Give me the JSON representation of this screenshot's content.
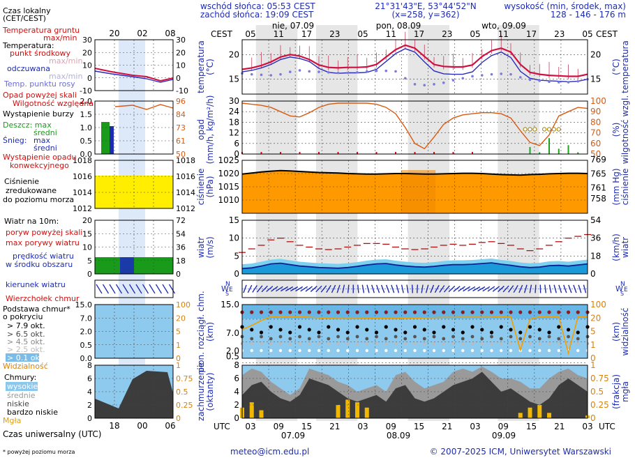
{
  "header": {
    "sunrise": "wschód słońca: 05:53 CEST",
    "sunset": "zachód słońca: 19:09 CEST",
    "coords": "21°31'43\"E, 53°44'52\"N",
    "grid": "(x=258, y=362)",
    "elev_label": "wysokość (min, środek, max)",
    "elev_values": "128 - 146 - 176 m"
  },
  "footer": {
    "email": "meteo@icm.edu.pl",
    "copyright": "© 2007-2025 ICM, Uniwersytet Warszawski",
    "note": "* powyżej poziomu morza"
  },
  "time_axis": {
    "top_label": "CEST",
    "bottom_label": "UTC",
    "top_hours": [
      "05",
      "11",
      "17",
      "23",
      "05",
      "11",
      "17",
      "23",
      "05",
      "11",
      "17",
      "23",
      "05"
    ],
    "bottom_hours": [
      "03",
      "09",
      "15",
      "21",
      "03",
      "09",
      "15",
      "21",
      "03",
      "09",
      "15",
      "21",
      "03"
    ],
    "days_top": [
      "nie, 07.09",
      "pon, 08.09",
      "wto, 09.09"
    ],
    "days_bottom": [
      "07.09",
      "08.09",
      "09.09"
    ]
  },
  "legend": {
    "local_time": "Czas lokalny",
    "local_time2": "(CET/CEST)",
    "legend_hours": [
      "20",
      "02",
      "08"
    ],
    "legend_utc_hours": [
      "18",
      "00",
      "06"
    ],
    "ground_temp": "Temperatura gruntu",
    "maxmin": "max/min",
    "temperature": "Temperatura:",
    "mid_point": "punkt środkowy",
    "maxmin2": "max/min",
    "felt": "odczuwana",
    "maxmin3": "max/min",
    "dew": "Temp. punktu rosy",
    "precip_above": "Opad powyżej skali",
    "humidity": "Wilgotność względna",
    "storm": "Wystąpienie burzy",
    "rain": "Deszcz: max",
    "rain_mid": "średni",
    "snow": "Śnieg:",
    "snow_max": "max",
    "snow_mid": "średni",
    "conv1": "Wystąpienie opadu",
    "conv2": "konwekcyjnego",
    "press1": "Ciśnienie",
    "press2": "zredukowane",
    "press3": "do poziomu morza",
    "wind10": "Wiatr na 10m:",
    "gust_above": "poryw powyżej skali",
    "gust_max": "max porywy wiatru",
    "wind_speed1": "prędkość wiatru",
    "wind_speed2": "w środku obszaru",
    "wind_dir": "kierunek wiatru",
    "cloud_top": "Wierzchołek chmur",
    "cloud_base1": "Podstawa chmur*",
    "cloud_base2": "o pokryciu",
    "okt1": "> 7.9 okt.",
    "okt2": "> 6.5 okt.",
    "okt3": "> 4.5 okt.",
    "okt4": "> 2.5 okt.",
    "okt5": "> 0.1 okt.",
    "visibility": "Widzialność",
    "clouds": "Chmury:",
    "c_high": "wysokie",
    "c_mid": "średnie",
    "c_low": "niskie",
    "c_vlow": "bardzo niskie",
    "fog": "Mgła",
    "utc_time": "Czas uniwersalny (UTC)"
  },
  "panels": {
    "temp": {
      "left": "temperatura",
      "left2": "(°C)",
      "right": "temperatura",
      "right2": "(°C)"
    },
    "precip": {
      "left": "opad",
      "left2": "(mm/h, kg/m²/h)",
      "right": "wilgotność wzgl.",
      "right2": "(%)"
    },
    "pressure": {
      "left": "ciśnienie",
      "left2": "(hPa)",
      "right": "ciśnienie",
      "right2": "(mm Hg)"
    },
    "wind": {
      "left": "wiatr",
      "left2": "(m/s)",
      "right": "wiatr",
      "right2": "(km/h)"
    },
    "cloudbase": {
      "left": "pion. rozciągł. chm.",
      "left2": "(km)",
      "right": "widzialność",
      "right2": "(km)"
    },
    "clouds": {
      "left": "zachmurzenie",
      "left2": "(oktanty)",
      "right": "mgła",
      "right2": "(frakcja)"
    },
    "compass": {
      "N": "N",
      "W": "W",
      "E": "E",
      "S": "S"
    }
  },
  "colors": {
    "temp": "#d01040",
    "felt": "#2a2ab8",
    "dew": "#7a7ae0",
    "humidity": "#d85a10",
    "rain": "#1aa51a",
    "pressure_fill": "#ff9900",
    "pressure_line": "#000000",
    "wind_fill": "#1a9ad8",
    "wind_gust": "#b01010",
    "fog": "#f0b800"
  },
  "chart_data": [
    {
      "type": "line",
      "title": "temperatura",
      "ylabel": "°C",
      "ylim": [
        12,
        23
      ],
      "yticks": [
        15,
        20
      ],
      "series": [
        {
          "name": "punkt środkowy",
          "values": [
            17.0,
            17.3,
            17.8,
            18.5,
            19.5,
            20.0,
            19.7,
            19.0,
            17.9,
            17.4,
            17.3,
            17.4,
            17.4,
            17.5,
            18.0,
            19.5,
            21.0,
            21.9,
            21.3,
            19.6,
            18.0,
            17.6,
            17.5,
            17.5,
            17.9,
            19.6,
            20.8,
            21.3,
            20.5,
            18.0,
            16.4,
            16.0,
            15.8,
            15.7,
            15.6,
            15.6,
            16.0
          ]
        },
        {
          "name": "odczuwana",
          "values": [
            16.5,
            16.8,
            17.3,
            18.0,
            19.0,
            19.5,
            19.2,
            18.6,
            17.2,
            16.4,
            16.2,
            16.3,
            16.3,
            16.4,
            17.0,
            18.6,
            20.2,
            21.2,
            20.5,
            18.5,
            16.7,
            16.1,
            16.0,
            16.0,
            16.5,
            18.4,
            19.8,
            20.5,
            19.4,
            16.6,
            15.2,
            14.8,
            14.7,
            14.6,
            14.5,
            14.6,
            15.0
          ]
        },
        {
          "name": "Temp. punktu rosy",
          "values": [
            16.2,
            16.0,
            15.9,
            15.8,
            16.0,
            16.5,
            16.8,
            16.6,
            16.5,
            16.4,
            16.3,
            16.3,
            16.4,
            16.6,
            16.7,
            16.7,
            16.6,
            15.2,
            14.0,
            13.8,
            14.0,
            14.3,
            14.8,
            15.2,
            15.6,
            15.8,
            16.0,
            16.1,
            16.0,
            15.4,
            14.9,
            14.7,
            14.5,
            14.4,
            14.4,
            14.6,
            15.0
          ]
        }
      ]
    },
    {
      "type": "line",
      "title": "opad / wilgotność wzgl.",
      "ylim": [
        0,
        30
      ],
      "yticks": [
        0,
        6,
        12,
        18,
        24,
        30
      ],
      "y2lim": [
        50,
        100
      ],
      "y2ticks": [
        50,
        60,
        70,
        80,
        90,
        100
      ],
      "series": [
        {
          "name": "wilgotność względna",
          "axis": "right",
          "values": [
            98,
            97,
            96,
            94,
            90,
            86,
            85,
            89,
            94,
            97,
            98,
            98,
            98,
            98,
            97,
            94,
            88,
            75,
            60,
            55,
            66,
            78,
            84,
            87,
            88,
            89,
            89,
            88,
            84,
            72,
            61,
            58,
            68,
            86,
            90,
            94,
            93
          ]
        },
        {
          "name": "deszcz",
          "axis": "left",
          "values": [
            0,
            0,
            0,
            0,
            0,
            0,
            0,
            0,
            0,
            0,
            0,
            0,
            0,
            0,
            0,
            0,
            0,
            0,
            0,
            0,
            0,
            0,
            0,
            0,
            0,
            0,
            0,
            0,
            0,
            0,
            4,
            1,
            9,
            3,
            5,
            1,
            0
          ]
        }
      ]
    },
    {
      "type": "area",
      "title": "ciśnienie",
      "ylabel": "hPa",
      "ylim": [
        1005,
        1025
      ],
      "yticks": [
        1010,
        1015,
        1020,
        1025
      ],
      "series": [
        {
          "name": "ciśnienie",
          "values": [
            1019.8,
            1020.2,
            1020.6,
            1020.9,
            1021.1,
            1021.0,
            1020.8,
            1020.6,
            1020.4,
            1020.3,
            1020.2,
            1020.0,
            1019.9,
            1019.8,
            1019.8,
            1019.9,
            1020.0,
            1020.0,
            1019.9,
            1019.8,
            1019.8,
            1019.9,
            1020.0,
            1020.1,
            1020.1,
            1020.0,
            1019.8,
            1019.6,
            1019.5,
            1019.4,
            1019.6,
            1019.7,
            1019.9,
            1020.0,
            1020.1,
            1020.1,
            1020.0
          ]
        }
      ]
    },
    {
      "type": "area",
      "title": "wiatr",
      "ylabel": "m/s",
      "ylim": [
        0,
        15
      ],
      "yticks": [
        0,
        5,
        10,
        15
      ],
      "series": [
        {
          "name": "prędkość wiatru",
          "values": [
            1.5,
            1.7,
            2.2,
            2.8,
            3.0,
            2.6,
            2.2,
            2.0,
            1.8,
            1.7,
            1.6,
            1.8,
            2.1,
            2.5,
            2.8,
            2.9,
            2.5,
            2.2,
            2.0,
            1.9,
            2.1,
            2.4,
            2.6,
            2.6,
            2.7,
            2.9,
            3.1,
            2.7,
            2.4,
            2.0,
            1.8,
            1.9,
            2.3,
            2.4,
            2.2,
            2.5,
            2.8
          ]
        },
        {
          "name": "max porywy wiatru",
          "values": [
            6.0,
            7.0,
            8.0,
            9.5,
            10.0,
            9.0,
            8.0,
            7.5,
            7.0,
            6.8,
            7.0,
            7.5,
            8.0,
            8.5,
            8.5,
            8.3,
            7.5,
            7.0,
            6.8,
            7.0,
            7.5,
            8.0,
            8.3,
            8.0,
            8.3,
            8.8,
            9.0,
            8.5,
            8.0,
            7.0,
            6.5,
            7.0,
            8.0,
            9.0,
            10.0,
            10.5,
            11.0
          ]
        }
      ]
    },
    {
      "type": "line",
      "title": "widzialność / pion. rozciągł. chm.",
      "ylim": [
        0,
        15
      ],
      "yticks": [
        0.5,
        2.0,
        7.0,
        15.0
      ],
      "y2ticks": [
        0,
        1,
        5,
        20,
        100
      ],
      "series": [
        {
          "name": "Widzialność",
          "values": [
            4.0,
            5.0,
            6.5,
            8.0,
            8.0,
            8.0,
            8.0,
            7.8,
            7.5,
            7.3,
            7.2,
            7.2,
            7.2,
            7.3,
            7.3,
            7.3,
            7.3,
            7.4,
            7.4,
            7.5,
            7.6,
            7.7,
            7.7,
            7.8,
            7.8,
            7.8,
            7.8,
            7.9,
            7.9,
            1.2,
            7.0,
            8.0,
            8.0,
            8.0,
            1.0,
            8.0,
            8.0
          ]
        }
      ]
    },
    {
      "type": "area",
      "title": "zachmurzenie / mgła",
      "ylabel": "oktanty",
      "ylim": [
        0,
        8
      ],
      "yticks": [
        0,
        2,
        4,
        6,
        8
      ],
      "y2ticks": [
        0,
        0.25,
        0.5,
        0.75,
        1
      ],
      "series": [
        {
          "name": "niskie",
          "values": [
            3.5,
            5.0,
            5.5,
            4.0,
            3.0,
            2.5,
            3.5,
            6.0,
            5.5,
            5.0,
            4.0,
            3.0,
            2.5,
            3.0,
            3.5,
            2.5,
            4.5,
            5.0,
            3.0,
            2.5,
            3.0,
            4.0,
            5.0,
            5.5,
            6.0,
            7.0,
            5.5,
            4.0,
            4.5,
            3.5,
            2.5,
            2.0,
            3.0,
            5.0,
            6.0,
            5.0,
            4.0
          ]
        },
        {
          "name": "średnie",
          "values": [
            6.5,
            7.5,
            7.0,
            5.5,
            4.5,
            3.5,
            4.5,
            7.5,
            7.0,
            6.5,
            5.5,
            5.0,
            4.0,
            4.5,
            5.0,
            4.0,
            6.5,
            7.0,
            5.5,
            4.5,
            5.0,
            5.5,
            7.0,
            7.5,
            7.0,
            7.8,
            7.0,
            6.0,
            6.0,
            5.5,
            4.5,
            4.5,
            6.0,
            7.0,
            7.5,
            6.5,
            6.0
          ]
        },
        {
          "name": "Mgła",
          "values": [
            0.2,
            0.3,
            0.15,
            0,
            0,
            0,
            0,
            0,
            0,
            0,
            0.25,
            0.35,
            0.3,
            0.2,
            0,
            0,
            0,
            0,
            0,
            0,
            0,
            0,
            0,
            0,
            0,
            0,
            0,
            0,
            0,
            0.1,
            0.2,
            0.25,
            0.1,
            0,
            0,
            0,
            0.05
          ]
        }
      ]
    }
  ]
}
